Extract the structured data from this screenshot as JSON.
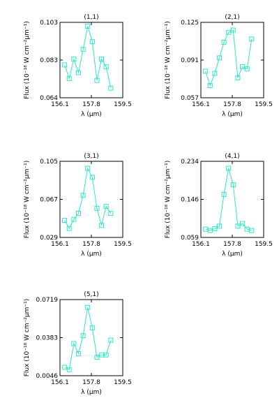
{
  "figure": {
    "xlabel": "λ (μm)",
    "ylabel": "Flux (10⁻¹⁸ W cm⁻²μm⁻¹)",
    "series_color": "#2ee6c8",
    "marker": "square"
  },
  "chart_data": [
    {
      "type": "line",
      "title": "(1,1)",
      "xlabel": "λ (μm)",
      "ylabel": "Flux (10⁻¹⁸ W cm⁻²μm⁻¹)",
      "xlim": [
        156.1,
        159.5
      ],
      "ylim": [
        0.064,
        0.103
      ],
      "xticks": [
        "156.1",
        "157.8",
        "159.5"
      ],
      "yticks": [
        "0.064",
        "0.083",
        "0.103"
      ],
      "x": [
        156.35,
        156.6,
        156.85,
        157.1,
        157.35,
        157.6,
        157.85,
        158.1,
        158.35,
        158.6,
        158.85
      ],
      "y": [
        0.081,
        0.074,
        0.084,
        0.077,
        0.089,
        0.101,
        0.093,
        0.073,
        0.084,
        0.08,
        0.069
      ]
    },
    {
      "type": "line",
      "title": "(2,1)",
      "xlabel": "λ (μm)",
      "ylabel": "Flux (10⁻¹⁸ W cm⁻²μm⁻¹)",
      "xlim": [
        156.1,
        159.5
      ],
      "ylim": [
        0.057,
        0.125
      ],
      "xticks": [
        "156.1",
        "157.8",
        "159.5"
      ],
      "yticks": [
        "0.057",
        "0.091",
        "0.125"
      ],
      "x": [
        156.35,
        156.6,
        156.85,
        157.1,
        157.35,
        157.6,
        157.85,
        158.1,
        158.35,
        158.6,
        158.85
      ],
      "y": [
        0.081,
        0.068,
        0.079,
        0.093,
        0.107,
        0.116,
        0.118,
        0.075,
        0.085,
        0.083,
        0.11
      ]
    },
    {
      "type": "line",
      "title": "(3,1)",
      "xlabel": "λ (μm)",
      "ylabel": "Flux (10⁻¹⁸ W cm⁻²μm⁻¹)",
      "xlim": [
        156.1,
        159.5
      ],
      "ylim": [
        0.029,
        0.105
      ],
      "xticks": [
        "156.1",
        "157.8",
        "159.5"
      ],
      "yticks": [
        "0.029",
        "0.067",
        "0.105"
      ],
      "x": [
        156.35,
        156.6,
        156.85,
        157.1,
        157.35,
        157.6,
        157.85,
        158.1,
        158.35,
        158.6,
        158.85
      ],
      "y": [
        0.046,
        0.038,
        0.047,
        0.053,
        0.071,
        0.098,
        0.089,
        0.058,
        0.041,
        0.06,
        0.053
      ]
    },
    {
      "type": "line",
      "title": "(4,1)",
      "xlabel": "λ (μm)",
      "ylabel": "Flux (10⁻¹⁸ W cm⁻²μm⁻¹)",
      "xlim": [
        156.1,
        159.5
      ],
      "ylim": [
        0.059,
        0.234
      ],
      "xticks": [
        "156.1",
        "157.8",
        "159.5"
      ],
      "yticks": [
        "0.059",
        "0.146",
        "0.234"
      ],
      "x": [
        156.35,
        156.6,
        156.85,
        157.1,
        157.35,
        157.6,
        157.85,
        158.1,
        158.35,
        158.6,
        158.85
      ],
      "y": [
        0.078,
        0.075,
        0.079,
        0.085,
        0.158,
        0.218,
        0.18,
        0.085,
        0.091,
        0.078,
        0.075
      ]
    },
    {
      "type": "line",
      "title": "(5,1)",
      "xlabel": "λ (μm)",
      "ylabel": "Flux (10⁻¹⁸ W cm⁻²μm⁻¹)",
      "xlim": [
        156.1,
        159.5
      ],
      "ylim": [
        0.0046,
        0.0719
      ],
      "xticks": [
        "156.1",
        "157.8",
        "159.5"
      ],
      "yticks": [
        "0.0046",
        "0.0383",
        "0.0719"
      ],
      "x": [
        156.35,
        156.6,
        156.85,
        157.1,
        157.35,
        157.6,
        157.85,
        158.1,
        158.35,
        158.6,
        158.85
      ],
      "y": [
        0.012,
        0.01,
        0.033,
        0.024,
        0.04,
        0.065,
        0.047,
        0.021,
        0.023,
        0.023,
        0.036
      ]
    }
  ]
}
